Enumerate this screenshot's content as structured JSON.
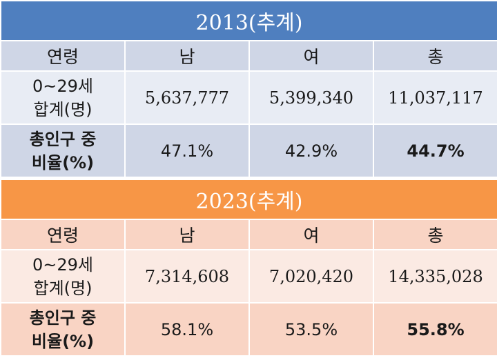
{
  "tables": [
    {
      "title": "2013(추계)",
      "headers": [
        "연령",
        "남",
        "여",
        "총"
      ],
      "row_total_label_1": "0~29세",
      "row_total_label_2": "합계(명)",
      "totals": [
        "5,637,777",
        "5,399,340",
        "11,037,117"
      ],
      "row_ratio_label_1": "총인구 중",
      "row_ratio_label_2": "비율(%)",
      "ratios": [
        "47.1%",
        "42.9%",
        "44.7%"
      ]
    },
    {
      "title": "2023(추계)",
      "headers": [
        "연령",
        "남",
        "여",
        "총"
      ],
      "row_total_label_1": "0~29세",
      "row_total_label_2": "합계(명)",
      "totals": [
        "7,314,608",
        "7,020,420",
        "14,335,028"
      ],
      "row_ratio_label_1": "총인구 중",
      "row_ratio_label_2": "비율(%)",
      "ratios": [
        "58.1%",
        "53.5%",
        "55.8%"
      ]
    }
  ],
  "colors": {
    "title_2013": "#4f7fbf",
    "title_2023": "#f79646",
    "band_2013_dark": "#cfd6e6",
    "band_2013_light": "#e8ecf4",
    "band_2023_dark": "#f9d4c4",
    "band_2023_light": "#fbeae3"
  }
}
